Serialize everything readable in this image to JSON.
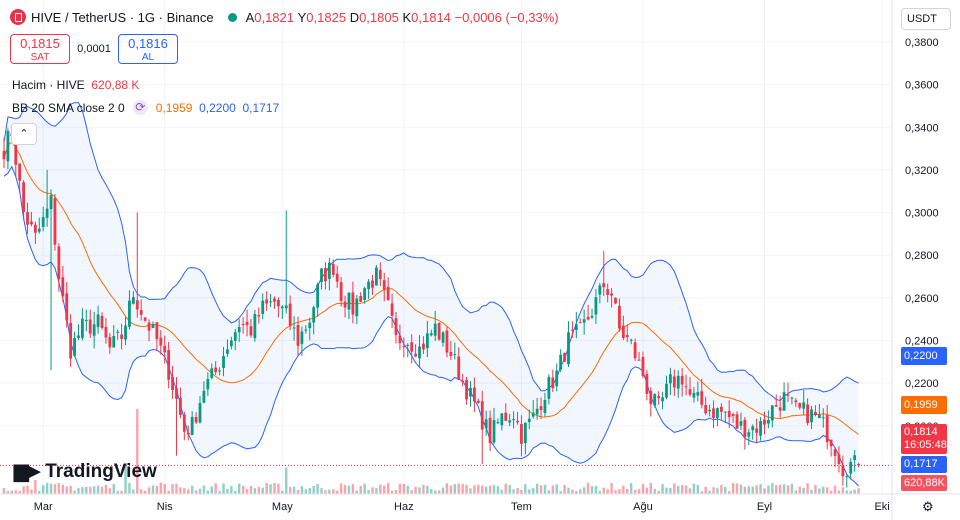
{
  "header": {
    "pair": "HIVE / TetherUS · 1G · Binance",
    "o_label": "A",
    "o_val": "0,1821",
    "h_label": "Y",
    "h_val": "0,1825",
    "l_label": "D",
    "l_val": "0,1805",
    "c_label": "K",
    "c_val": "0,1814",
    "change": "−0,0006 (−0,33%)"
  },
  "trade": {
    "sell_price": "0,1815",
    "sell_label": "SAT",
    "spread": "0,0001",
    "buy_price": "0,1816",
    "buy_label": "AL"
  },
  "volume_legend": {
    "label": "Hacim · HIVE",
    "value": "620,88 K"
  },
  "bb_legend": {
    "label": "BB 20 SMA close 2 0",
    "basis": "0,1959",
    "upper": "0,2200",
    "lower": "0,1717"
  },
  "currency": "USDT",
  "collapse_glyph": "⌃",
  "watermark": "TradingView",
  "tags": {
    "upper": "0,2200",
    "basis": "0,1959",
    "last": "0,1814",
    "countdown": "16:05:48",
    "lower": "0,1717",
    "volume": "620,88K"
  },
  "colors": {
    "up": "#089981",
    "down": "#f23645",
    "basis": "#ff6d00",
    "bands": "#2962ff",
    "fill": "#2962ff"
  },
  "chart_data": {
    "type": "candlestick",
    "y_ticks": [
      "0,3800",
      "0,3600",
      "0,3400",
      "0,3200",
      "0,3000",
      "0,2800",
      "0,2600",
      "0,2400",
      "0,2200",
      "0,2000"
    ],
    "ylim": [
      0.168,
      0.3875
    ],
    "x_ticks": [
      "Mar",
      "Nis",
      "May",
      "Haz",
      "Tem",
      "Ağu",
      "Eyl",
      "Eki"
    ],
    "x_tick_index": [
      10,
      41,
      71,
      102,
      132,
      163,
      194,
      224
    ],
    "last_price": 0.1814,
    "close_anchors": [
      [
        0,
        0.33
      ],
      [
        2,
        0.338
      ],
      [
        5,
        0.3
      ],
      [
        8,
        0.288
      ],
      [
        10,
        0.296
      ],
      [
        12,
        0.305
      ],
      [
        14,
        0.27
      ],
      [
        17,
        0.236
      ],
      [
        20,
        0.246
      ],
      [
        24,
        0.248
      ],
      [
        27,
        0.236
      ],
      [
        30,
        0.242
      ],
      [
        33,
        0.262
      ],
      [
        36,
        0.25
      ],
      [
        39,
        0.24
      ],
      [
        42,
        0.226
      ],
      [
        44,
        0.212
      ],
      [
        46,
        0.198
      ],
      [
        48,
        0.2
      ],
      [
        51,
        0.218
      ],
      [
        54,
        0.225
      ],
      [
        57,
        0.238
      ],
      [
        60,
        0.248
      ],
      [
        63,
        0.245
      ],
      [
        66,
        0.255
      ],
      [
        69,
        0.258
      ],
      [
        72,
        0.252
      ],
      [
        75,
        0.24
      ],
      [
        78,
        0.25
      ],
      [
        81,
        0.27
      ],
      [
        84,
        0.275
      ],
      [
        86,
        0.262
      ],
      [
        89,
        0.255
      ],
      [
        92,
        0.265
      ],
      [
        95,
        0.27
      ],
      [
        98,
        0.255
      ],
      [
        100,
        0.24
      ],
      [
        102,
        0.242
      ],
      [
        106,
        0.236
      ],
      [
        110,
        0.246
      ],
      [
        114,
        0.234
      ],
      [
        117,
        0.221
      ],
      [
        120,
        0.21
      ],
      [
        122,
        0.203
      ],
      [
        124,
        0.195
      ],
      [
        127,
        0.204
      ],
      [
        130,
        0.206
      ],
      [
        132,
        0.196
      ],
      [
        135,
        0.204
      ],
      [
        138,
        0.216
      ],
      [
        141,
        0.224
      ],
      [
        144,
        0.24
      ],
      [
        147,
        0.244
      ],
      [
        150,
        0.254
      ],
      [
        153,
        0.266
      ],
      [
        155,
        0.262
      ],
      [
        157,
        0.245
      ],
      [
        160,
        0.238
      ],
      [
        163,
        0.224
      ],
      [
        165,
        0.212
      ],
      [
        167,
        0.208
      ],
      [
        170,
        0.22
      ],
      [
        173,
        0.223
      ],
      [
        175,
        0.214
      ],
      [
        178,
        0.21
      ],
      [
        181,
        0.207
      ],
      [
        184,
        0.206
      ],
      [
        187,
        0.2
      ],
      [
        190,
        0.199
      ],
      [
        193,
        0.2
      ],
      [
        196,
        0.208
      ],
      [
        199,
        0.213
      ],
      [
        202,
        0.207
      ],
      [
        205,
        0.206
      ],
      [
        208,
        0.203
      ],
      [
        211,
        0.194
      ],
      [
        213,
        0.186
      ],
      [
        214,
        0.1805
      ],
      [
        216,
        0.182
      ],
      [
        218,
        0.1814
      ]
    ],
    "high_spikes": [
      [
        3,
        0.339
      ],
      [
        11,
        0.32
      ],
      [
        34,
        0.3
      ],
      [
        72,
        0.301
      ],
      [
        84,
        0.278
      ],
      [
        153,
        0.282
      ]
    ],
    "low_spikes": [
      [
        12,
        0.226
      ],
      [
        44,
        0.186
      ],
      [
        122,
        0.182
      ]
    ],
    "volume": {
      "last": 620.88,
      "spikes": [
        [
          34,
          9000
        ],
        [
          31,
          3200
        ],
        [
          72,
          2800
        ],
        [
          8,
          1500
        ],
        [
          40,
          1200
        ],
        [
          122,
          900
        ]
      ]
    },
    "bollinger": {
      "period": 20,
      "mult": 2,
      "basis": 0.1959,
      "upper": 0.22,
      "lower": 0.1717
    }
  }
}
